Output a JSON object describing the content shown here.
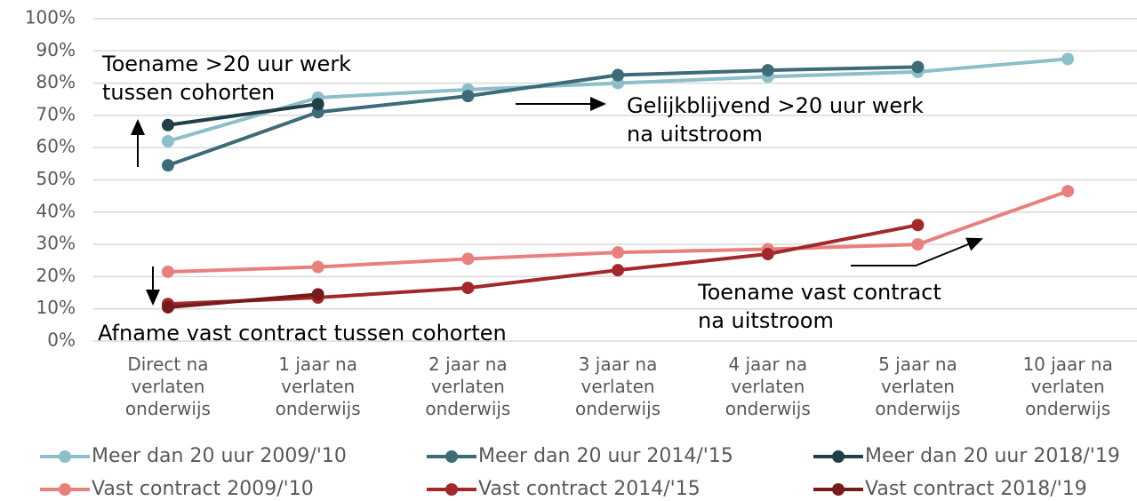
{
  "chart_data": {
    "type": "line",
    "categories": [
      "Direct na\nverlaten\nonderwijs",
      "1 jaar na\nverlaten\nonderwijs",
      "2 jaar na\nverlaten\nonderwijs",
      "3 jaar na\nverlaten\nonderwijs",
      "4 jaar na\nverlaten\nonderwijs",
      "5 jaar na\nverlaten\nonderwijs",
      "10 jaar na\nverlaten\nonderwijs"
    ],
    "series": [
      {
        "name": "Meer dan 20 uur 2009/'10",
        "color": "#8cbfca",
        "values": [
          62,
          75.5,
          78,
          80,
          82,
          83.5,
          87.5
        ]
      },
      {
        "name": "Meer dan 20 uur 2014/'15",
        "color": "#3d6b77",
        "values": [
          54.5,
          71,
          76,
          82.5,
          84,
          85,
          null
        ]
      },
      {
        "name": "Meer dan 20 uur 2018/'19",
        "color": "#213f47",
        "values": [
          67,
          73.5,
          null,
          null,
          null,
          null,
          null
        ]
      },
      {
        "name": "Vast contract 2009/'10",
        "color": "#e8807e",
        "values": [
          21.5,
          23,
          25.5,
          27.5,
          28.5,
          30,
          46.5
        ]
      },
      {
        "name": "Vast contract 2014/'15",
        "color": "#a3282a",
        "values": [
          11.5,
          13.5,
          16.5,
          22,
          27,
          36,
          null
        ]
      },
      {
        "name": "Vast contract 2018/'19",
        "color": "#771a1c",
        "values": [
          10.5,
          14.5,
          null,
          null,
          null,
          null,
          null
        ]
      }
    ],
    "ylim": [
      0,
      100
    ],
    "yticks": [
      {
        "value": 0,
        "label": "0%"
      },
      {
        "value": 10,
        "label": "10%"
      },
      {
        "value": 20,
        "label": "20%"
      },
      {
        "value": 30,
        "label": "30%"
      },
      {
        "value": 40,
        "label": "40%"
      },
      {
        "value": 50,
        "label": "50%"
      },
      {
        "value": 60,
        "label": "60%"
      },
      {
        "value": 70,
        "label": "70%"
      },
      {
        "value": 80,
        "label": "80%"
      },
      {
        "value": 90,
        "label": "90%"
      },
      {
        "value": 100,
        "label": "100%"
      }
    ],
    "grid": true,
    "annotations": [
      "Toename >20 uur werk\ntussen cohorten",
      "Gelijkblijvend >20 uur werk\nna uitstroom",
      "Toename vast contract\nna uitstroom",
      "Afname vast contract tussen cohorten"
    ]
  }
}
